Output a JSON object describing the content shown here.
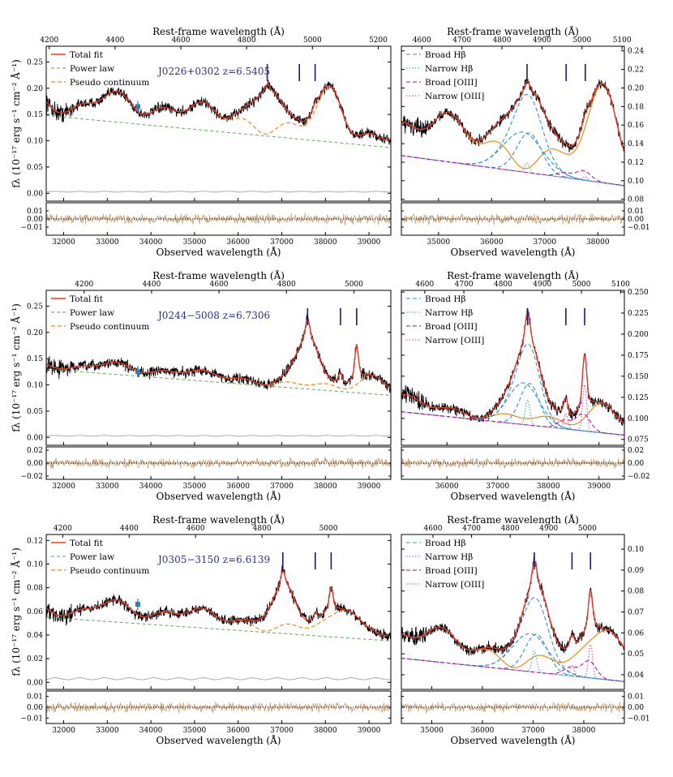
{
  "labels": {
    "top_axis": "Rest-frame wavelength (Å)",
    "bottom_axis": "Observed wavelength (Å)",
    "y_axis": "fλ (10⁻¹⁷ erg s⁻¹ cm⁻² Å⁻¹)"
  },
  "colors": {
    "total_fit": "#e8392c",
    "power_law": "#5faa55",
    "pseudo_continuum": "#f08a10",
    "broad_hb": "#2f8fd8",
    "narrow_hb": "#22a0c0",
    "broad_oiii": "#b00090",
    "narrow_oiii": "#c040d0",
    "data": "#000000",
    "residual": "#c8a882",
    "marker": "#1a1a6e",
    "photometry": "#3a78b8"
  },
  "chart_data": [
    {
      "type": "line",
      "id": "J0226_full",
      "object_label": "J0226+0302 z=6.5405",
      "legend": [
        "Total fit",
        "Power law",
        "Pseudo continuum"
      ],
      "xlim": [
        31600,
        39500
      ],
      "ylim": [
        -0.015,
        0.28
      ],
      "xticks": [
        32000,
        33000,
        34000,
        35000,
        36000,
        37000,
        38000,
        39000
      ],
      "yticks": [
        0.0,
        0.05,
        0.1,
        0.15,
        0.2,
        0.25
      ],
      "yticklabels": [
        "0.00",
        "0.05",
        "0.10",
        "0.15",
        "0.20",
        "0.25"
      ],
      "top_ticks": [
        4200,
        4400,
        4600,
        4800,
        5000,
        5200
      ],
      "redshift": 6.5405,
      "marker_rest": [
        4862.7,
        4960.3,
        5008.2
      ],
      "photometry": {
        "x": 33700,
        "y": 0.165
      },
      "resid_ylim": [
        -0.02,
        0.02
      ],
      "resid_ticks": [
        -0.01,
        0.0,
        0.01
      ],
      "resid_ticklabels": [
        "−0.01",
        "0.00",
        "0.01"
      ]
    },
    {
      "type": "line",
      "id": "J0226_zoom",
      "legend": [
        "Broad Hβ",
        "Narrow Hβ",
        "Broad [OIII]",
        "Narrow [OIII]"
      ],
      "xlim": [
        34300,
        38500
      ],
      "ylim": [
        0.078,
        0.245
      ],
      "xticks": [
        35000,
        36000,
        37000,
        38000
      ],
      "yticks": [
        0.08,
        0.1,
        0.12,
        0.14,
        0.16,
        0.18,
        0.2,
        0.22,
        0.24
      ],
      "yticklabels": [
        "0.08",
        "0.10",
        "0.12",
        "0.14",
        "0.16",
        "0.18",
        "0.20",
        "0.22",
        "0.24"
      ],
      "top_ticks": [
        4600,
        4700,
        4800,
        4900,
        5000,
        5100
      ],
      "redshift": 6.5405,
      "marker_rest": [
        4862.7,
        4960.3,
        5008.2
      ],
      "resid_ylim": [
        -0.02,
        0.02
      ],
      "resid_ticks": [
        -0.01,
        0.0,
        0.01
      ],
      "resid_ticklabels": [
        "−0.01",
        "0.00",
        "0.01"
      ]
    },
    {
      "type": "line",
      "id": "J0244_full",
      "object_label": "J0244−5008 z=6.7306",
      "legend": [
        "Total fit",
        "Power law",
        "Pseudo continuum"
      ],
      "xlim": [
        31600,
        39500
      ],
      "ylim": [
        -0.015,
        0.28
      ],
      "xticks": [
        32000,
        33000,
        34000,
        35000,
        36000,
        37000,
        38000,
        39000
      ],
      "yticks": [
        0.0,
        0.05,
        0.1,
        0.15,
        0.2,
        0.25
      ],
      "yticklabels": [
        "0.00",
        "0.05",
        "0.10",
        "0.15",
        "0.20",
        "0.25"
      ],
      "top_ticks": [
        4200,
        4400,
        4600,
        4800,
        5000
      ],
      "redshift": 6.7306,
      "marker_rest": [
        4862.7,
        4960.3,
        5008.2
      ],
      "photometry": {
        "x": 33700,
        "y": 0.125
      },
      "resid_ylim": [
        -0.025,
        0.025
      ],
      "resid_ticks": [
        -0.02,
        0.0,
        0.02
      ],
      "resid_ticklabels": [
        "−0.02",
        "0.00",
        "0.02"
      ]
    },
    {
      "type": "line",
      "id": "J0244_zoom",
      "legend": [
        "Broad Hβ",
        "Narrow Hβ",
        "Broad [OIII]",
        "Narrow [OIII]"
      ],
      "xlim": [
        35100,
        39500
      ],
      "ylim": [
        0.068,
        0.252
      ],
      "xticks": [
        36000,
        37000,
        38000,
        39000
      ],
      "yticks": [
        0.075,
        0.1,
        0.125,
        0.15,
        0.175,
        0.2,
        0.225,
        0.25
      ],
      "yticklabels": [
        "0.075",
        "0.100",
        "0.125",
        "0.150",
        "0.175",
        "0.200",
        "0.225",
        "0.250"
      ],
      "top_ticks": [
        4600,
        4700,
        4800,
        4900,
        5000,
        5100
      ],
      "redshift": 6.7306,
      "marker_rest": [
        4862.7,
        4960.3,
        5008.2
      ],
      "resid_ylim": [
        -0.025,
        0.025
      ],
      "resid_ticks": [
        -0.02,
        0.0,
        0.02
      ],
      "resid_ticklabels": [
        "−0.02",
        "0.00",
        "0.02"
      ]
    },
    {
      "type": "line",
      "id": "J0305_full",
      "object_label": "J0305−3150 z=6.6139",
      "legend": [
        "Total fit",
        "Power law",
        "Pseudo continuum"
      ],
      "xlim": [
        31600,
        39500
      ],
      "ylim": [
        -0.006,
        0.125
      ],
      "xticks": [
        32000,
        33000,
        34000,
        35000,
        36000,
        37000,
        38000,
        39000
      ],
      "yticks": [
        0.0,
        0.02,
        0.04,
        0.06,
        0.08,
        0.1,
        0.12
      ],
      "yticklabels": [
        "0.00",
        "0.02",
        "0.04",
        "0.06",
        "0.08",
        "0.10",
        "0.12"
      ],
      "top_ticks": [
        4200,
        4400,
        4600,
        4800,
        5000
      ],
      "redshift": 6.6139,
      "marker_rest": [
        4862.7,
        4960.3,
        5008.2
      ],
      "photometry": {
        "x": 33700,
        "y": 0.066
      },
      "resid_ylim": [
        -0.015,
        0.015
      ],
      "resid_ticks": [
        -0.01,
        0.0,
        0.01
      ],
      "resid_ticklabels": [
        "−0.01",
        "0.00",
        "0.01"
      ]
    },
    {
      "type": "line",
      "id": "J0305_zoom",
      "legend": [
        "Broad Hβ",
        "Narrow Hβ",
        "Broad [OIII]",
        "Narrow [OIII]"
      ],
      "xlim": [
        34400,
        38800
      ],
      "ylim": [
        0.033,
        0.107
      ],
      "xticks": [
        35000,
        36000,
        37000,
        38000
      ],
      "yticks": [
        0.04,
        0.05,
        0.06,
        0.07,
        0.08,
        0.09,
        0.1
      ],
      "yticklabels": [
        "0.04",
        "0.05",
        "0.06",
        "0.07",
        "0.08",
        "0.09",
        "0.10"
      ],
      "top_ticks": [
        4600,
        4700,
        4800,
        4900,
        5000,
        5100
      ],
      "redshift": 6.6139,
      "marker_rest": [
        4862.7,
        4960.3,
        5008.2
      ],
      "resid_ylim": [
        -0.015,
        0.015
      ],
      "resid_ticks": [
        -0.01,
        0.0,
        0.01
      ],
      "resid_ticklabels": [
        "−0.01",
        "0.00",
        "0.01"
      ]
    }
  ]
}
